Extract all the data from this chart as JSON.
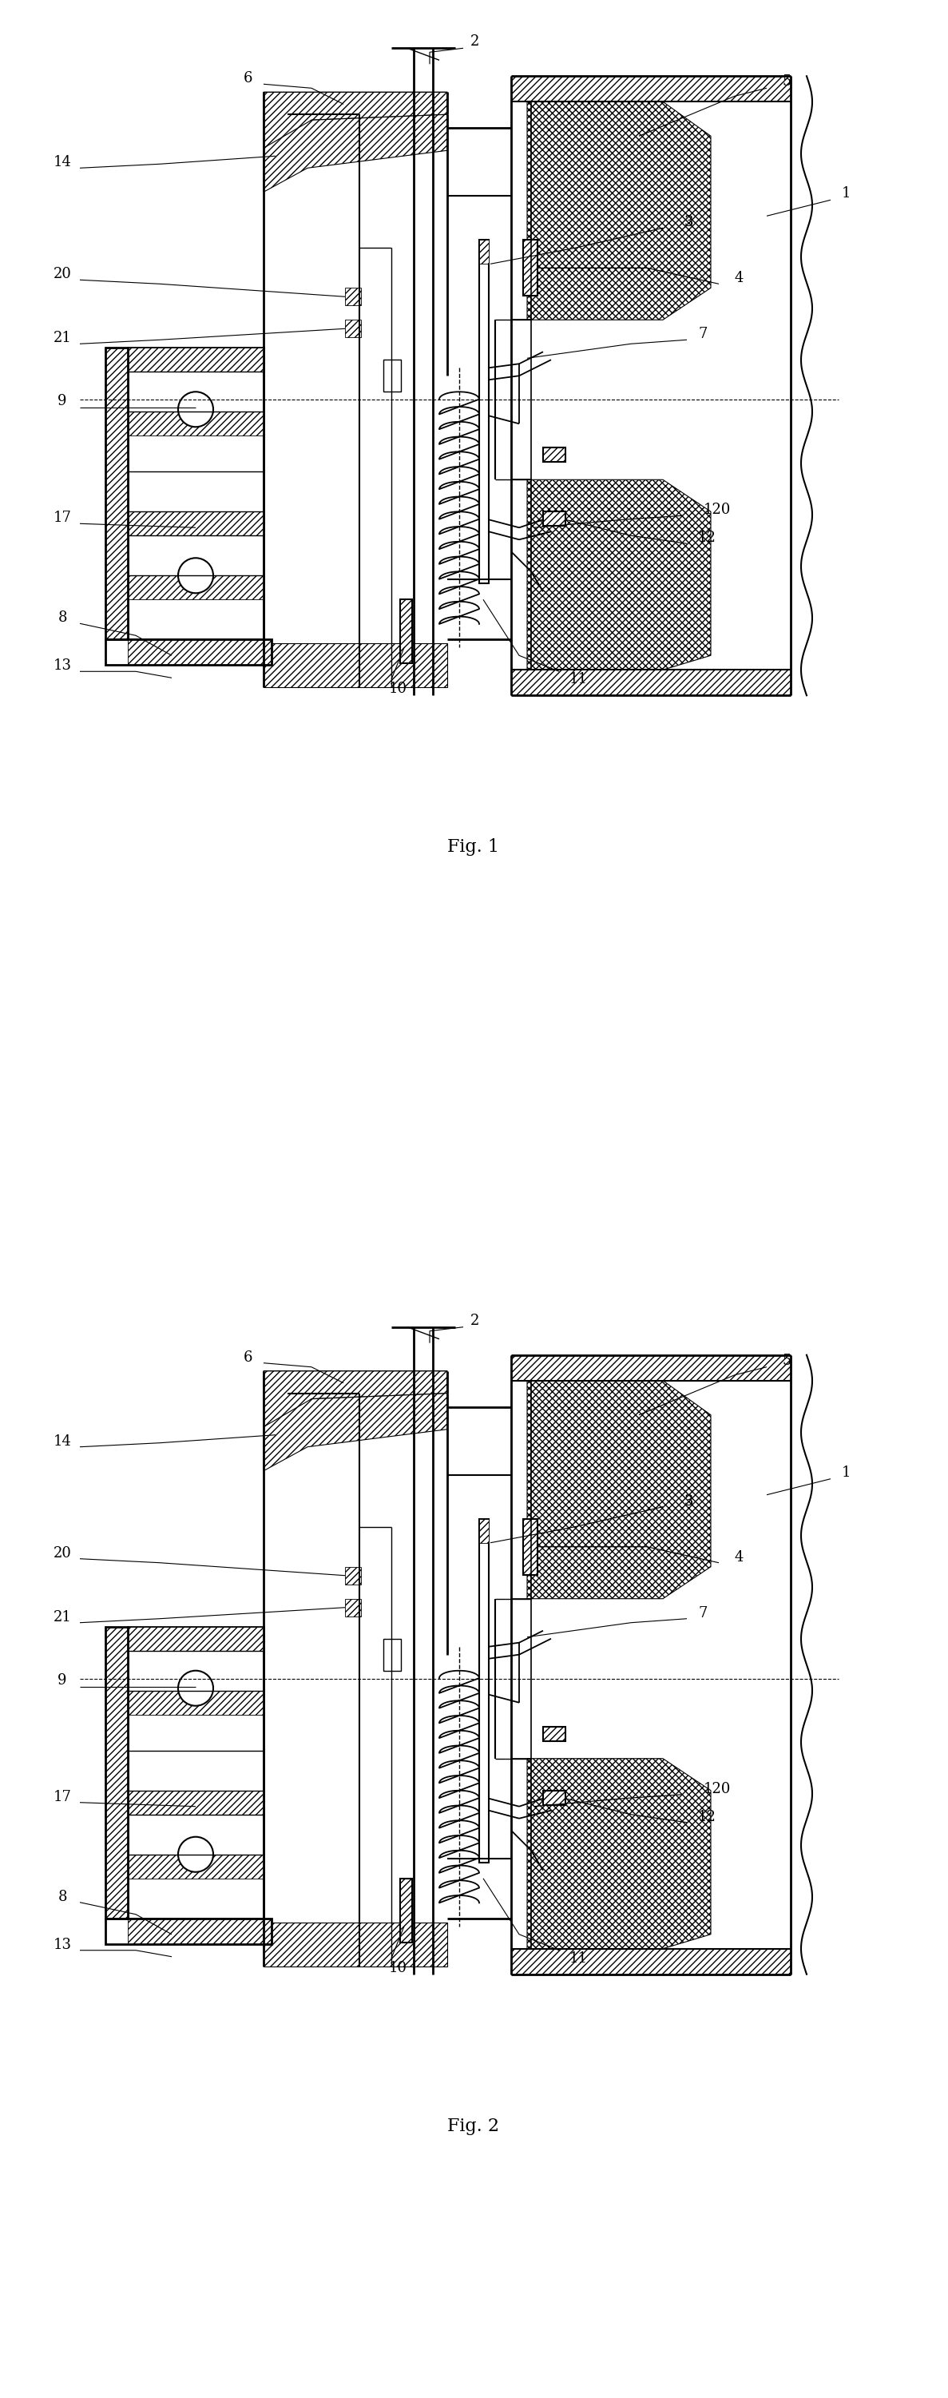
{
  "bg_color": "#ffffff",
  "line_color": "#000000",
  "fig1_caption": "Fig. 1",
  "fig2_caption": "Fig. 2"
}
